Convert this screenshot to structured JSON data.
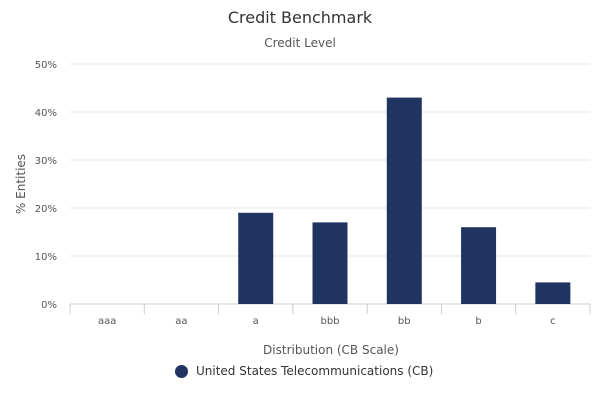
{
  "chart_data": {
    "type": "bar",
    "title": "Credit Benchmark",
    "subtitle": "Credit Level",
    "xlabel": "Distribution (CB Scale)",
    "ylabel": "% Entities",
    "categories": [
      "aaa",
      "aa",
      "a",
      "bbb",
      "bb",
      "b",
      "c"
    ],
    "series": [
      {
        "name": "United States Telecommunications (CB)",
        "values": [
          0,
          0,
          19,
          17,
          43,
          16,
          4.5
        ],
        "color": "#1f3461"
      }
    ],
    "ylim": [
      0,
      50
    ],
    "yticks": [
      0,
      10,
      20,
      30,
      40,
      50
    ],
    "ytick_labels": [
      "0%",
      "10%",
      "20%",
      "30%",
      "40%",
      "50%"
    ],
    "grid": true,
    "legend_position": "bottom"
  }
}
